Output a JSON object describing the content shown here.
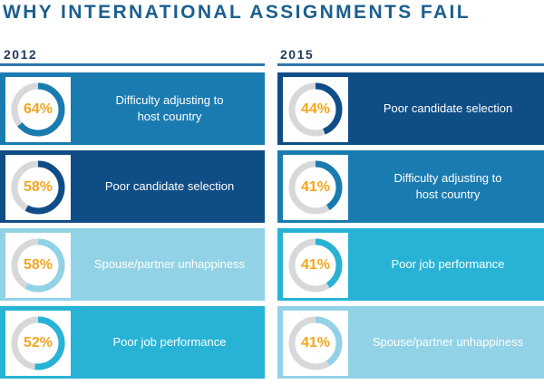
{
  "title": "WHY INTERNATIONAL ASSIGNMENTS FAIL",
  "colors": {
    "title": "#1b5f8e",
    "rule": "#2e74a8",
    "percent_text": "#f2a61f",
    "ring_track": "#d7d8da"
  },
  "chart_data": [
    {
      "type": "donut-list",
      "panel": "2012",
      "categories": [
        "Difficulty adjusting to\nhost country",
        "Poor candidate selection",
        "Spouse/partner unhappiness",
        "Poor job performance"
      ],
      "values": [
        64,
        58,
        58,
        52
      ],
      "labels": [
        "64%",
        "58%",
        "58%",
        "52%"
      ],
      "row_colors": [
        "#1a7bb0",
        "#0f4d86",
        "#92d2e6",
        "#28b3d6"
      ],
      "ring_colors": [
        "#1a7bb0",
        "#0f4d86",
        "#92d2e6",
        "#28b3d6"
      ]
    },
    {
      "type": "donut-list",
      "panel": "2015",
      "categories": [
        "Poor candidate selection",
        "Difficulty adjusting to\nhost country",
        "Poor job performance",
        "Spouse/partner unhappiness"
      ],
      "values": [
        44,
        41,
        41,
        41
      ],
      "labels": [
        "44%",
        "41%",
        "41%",
        "41%"
      ],
      "row_colors": [
        "#0f4d86",
        "#1a7bb0",
        "#28b3d6",
        "#92d2e6"
      ],
      "ring_colors": [
        "#0f4d86",
        "#1a7bb0",
        "#28b3d6",
        "#92d2e6"
      ]
    }
  ]
}
